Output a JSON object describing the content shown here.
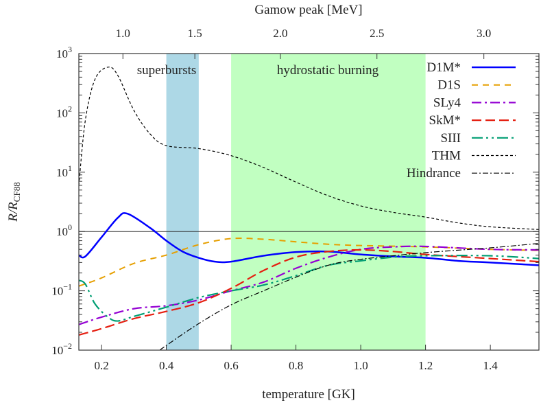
{
  "chart_data": {
    "type": "line",
    "xlabel": "temperature [GK]",
    "ylabel": "R/R",
    "ylabel_sub": "CF88",
    "top_xlabel": "Gamow peak [MeV]",
    "xlim": [
      0.13,
      1.55
    ],
    "ylim": [
      0.01,
      1000
    ],
    "yscale": "log",
    "x_ticks": [
      "0.2",
      "0.4",
      "0.6",
      "0.8",
      "1.0",
      "1.2",
      "1.4"
    ],
    "y_ticks": [
      {
        "base": "10",
        "exp": "−2",
        "value": 0.01
      },
      {
        "base": "10",
        "exp": "−1",
        "value": 0.1
      },
      {
        "base": "10",
        "exp": "0",
        "value": 1
      },
      {
        "base": "10",
        "exp": "1",
        "value": 10
      },
      {
        "base": "10",
        "exp": "2",
        "value": 100
      },
      {
        "base": "10",
        "exp": "3",
        "value": 1000
      }
    ],
    "top_ticks": [
      {
        "label": "1.0",
        "temperature": 0.266
      },
      {
        "label": "1.5",
        "temperature": 0.488
      },
      {
        "label": "2.0",
        "temperature": 0.752
      },
      {
        "label": "2.5",
        "temperature": 1.05
      },
      {
        "label": "3.0",
        "temperature": 1.38
      }
    ],
    "legend_position": "top-right",
    "regions": [
      {
        "label": "superbursts",
        "x": [
          0.4,
          0.5
        ],
        "color": "#add8e6"
      },
      {
        "label": "hydrostatic burning",
        "x": [
          0.6,
          1.2
        ],
        "color": "#c1ffc1"
      }
    ],
    "reference_line": 1,
    "series": [
      {
        "name": "D1M*",
        "color": "#0000ff",
        "dash": "",
        "width": 2.5,
        "x": [
          0.13,
          0.15,
          0.2,
          0.25,
          0.28,
          0.35,
          0.4,
          0.45,
          0.5,
          0.55,
          0.6,
          0.7,
          0.8,
          0.9,
          1.0,
          1.1,
          1.2,
          1.3,
          1.4,
          1.55
        ],
        "y": [
          0.4,
          0.38,
          0.8,
          1.7,
          2.0,
          1.15,
          0.7,
          0.46,
          0.36,
          0.31,
          0.31,
          0.39,
          0.45,
          0.46,
          0.41,
          0.38,
          0.36,
          0.32,
          0.3,
          0.27
        ]
      },
      {
        "name": "D1S",
        "color": "#e69f00",
        "dash": "9,7",
        "width": 2,
        "x": [
          0.13,
          0.2,
          0.3,
          0.4,
          0.5,
          0.6,
          0.7,
          0.8,
          0.9,
          1.0,
          1.2,
          1.4,
          1.55
        ],
        "y": [
          0.12,
          0.165,
          0.29,
          0.4,
          0.6,
          0.76,
          0.74,
          0.67,
          0.61,
          0.58,
          0.55,
          0.5,
          0.48
        ]
      },
      {
        "name": "SLy4",
        "color": "#9400d3",
        "dash": "14,5,3,5",
        "width": 2.2,
        "x": [
          0.13,
          0.2,
          0.3,
          0.4,
          0.5,
          0.6,
          0.7,
          0.8,
          0.9,
          1.0,
          1.1,
          1.2,
          1.4,
          1.55
        ],
        "y": [
          0.027,
          0.036,
          0.05,
          0.056,
          0.07,
          0.1,
          0.14,
          0.24,
          0.37,
          0.5,
          0.55,
          0.56,
          0.5,
          0.49
        ]
      },
      {
        "name": "SkM*",
        "color": "#e51e10",
        "dash": "14,6",
        "width": 2.2,
        "x": [
          0.13,
          0.2,
          0.3,
          0.4,
          0.5,
          0.6,
          0.7,
          0.8,
          0.9,
          1.0,
          1.1,
          1.2,
          1.4,
          1.55
        ],
        "y": [
          0.018,
          0.023,
          0.034,
          0.045,
          0.063,
          0.11,
          0.22,
          0.37,
          0.46,
          0.49,
          0.46,
          0.41,
          0.35,
          0.31
        ]
      },
      {
        "name": "SIII",
        "color": "#009e73",
        "dash": "16,5,3,5,3,5",
        "width": 2.2,
        "x": [
          0.13,
          0.15,
          0.18,
          0.22,
          0.25,
          0.3,
          0.4,
          0.5,
          0.6,
          0.7,
          0.8,
          0.9,
          1.0,
          1.1,
          1.2,
          1.4,
          1.55
        ],
        "y": [
          0.15,
          0.13,
          0.06,
          0.036,
          0.031,
          0.037,
          0.053,
          0.077,
          0.1,
          0.125,
          0.18,
          0.27,
          0.32,
          0.37,
          0.39,
          0.39,
          0.35
        ]
      },
      {
        "name": "THM",
        "color": "#000000",
        "dash": "4,3",
        "width": 1.2,
        "x": [
          0.13,
          0.15,
          0.18,
          0.22,
          0.25,
          0.3,
          0.35,
          0.4,
          0.5,
          0.6,
          0.7,
          0.8,
          0.9,
          1.0,
          1.1,
          1.2,
          1.3,
          1.4,
          1.55
        ],
        "y": [
          6,
          75,
          370,
          590,
          430,
          110,
          44,
          28,
          25,
          19,
          12,
          6.8,
          4,
          2.7,
          2.1,
          1.75,
          1.4,
          1.2,
          1.08
        ]
      },
      {
        "name": "Hindrance",
        "color": "#000000",
        "dash": "8,3,2,3",
        "width": 1.2,
        "x": [
          0.38,
          0.4,
          0.5,
          0.6,
          0.7,
          0.8,
          0.9,
          1.0,
          1.2,
          1.4,
          1.55
        ],
        "y": [
          0.01,
          0.012,
          0.028,
          0.058,
          0.1,
          0.17,
          0.27,
          0.34,
          0.44,
          0.53,
          0.63
        ]
      }
    ]
  }
}
